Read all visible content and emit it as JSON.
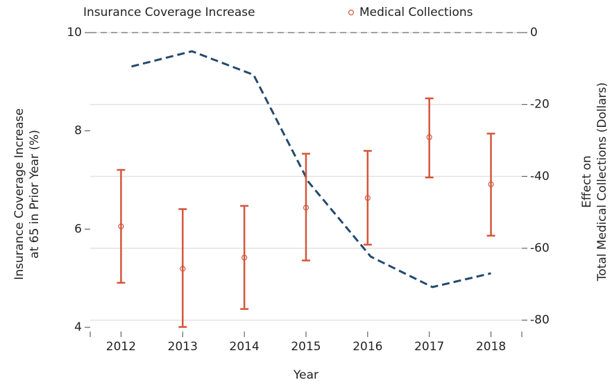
{
  "chart_data": {
    "type": "line-errorbar",
    "legend_position": "top",
    "xlabel": "Year",
    "ylabel": [
      "Insurance Coverage Increase",
      "at 65 in Prior Year (%)"
    ],
    "y2label": [
      "Effect on",
      "Total Medical Collections (Dollars)"
    ],
    "xlim": [
      2011.5,
      2018.5
    ],
    "xticks": [
      2012,
      2013,
      2014,
      2015,
      2016,
      2017,
      2018
    ],
    "ylim": [
      4,
      10
    ],
    "yticks": [
      4,
      6,
      8,
      10
    ],
    "y2lim": [
      -82,
      0
    ],
    "y2ticks": [
      -80,
      -60,
      -40,
      -20,
      0
    ],
    "reference_line": 0,
    "grid": true,
    "series": [
      {
        "name": "Insurance Coverage Increase",
        "color": "#24496e",
        "style": "dashed",
        "x": [
          2012.17,
          2013.15,
          2014.15,
          2015.04,
          2016.05,
          2017.05,
          2018.0
        ],
        "values": [
          9.31,
          9.62,
          9.14,
          6.96,
          5.44,
          4.82,
          5.1
        ]
      },
      {
        "name": "Medical Collections",
        "color": "#d4553a",
        "axis": "y2",
        "x": [
          2012,
          2013,
          2014,
          2015,
          2016,
          2017,
          2018
        ],
        "values": [
          -53.9,
          -65.7,
          -62.6,
          -48.7,
          -46.0,
          -29.1,
          -42.2
        ],
        "lower": [
          -69.6,
          -81.9,
          -76.9,
          -63.4,
          -59.0,
          -40.3,
          -56.5
        ],
        "upper": [
          -38.2,
          -49.1,
          -48.2,
          -33.7,
          -32.9,
          -18.3,
          -28.1
        ]
      }
    ]
  }
}
